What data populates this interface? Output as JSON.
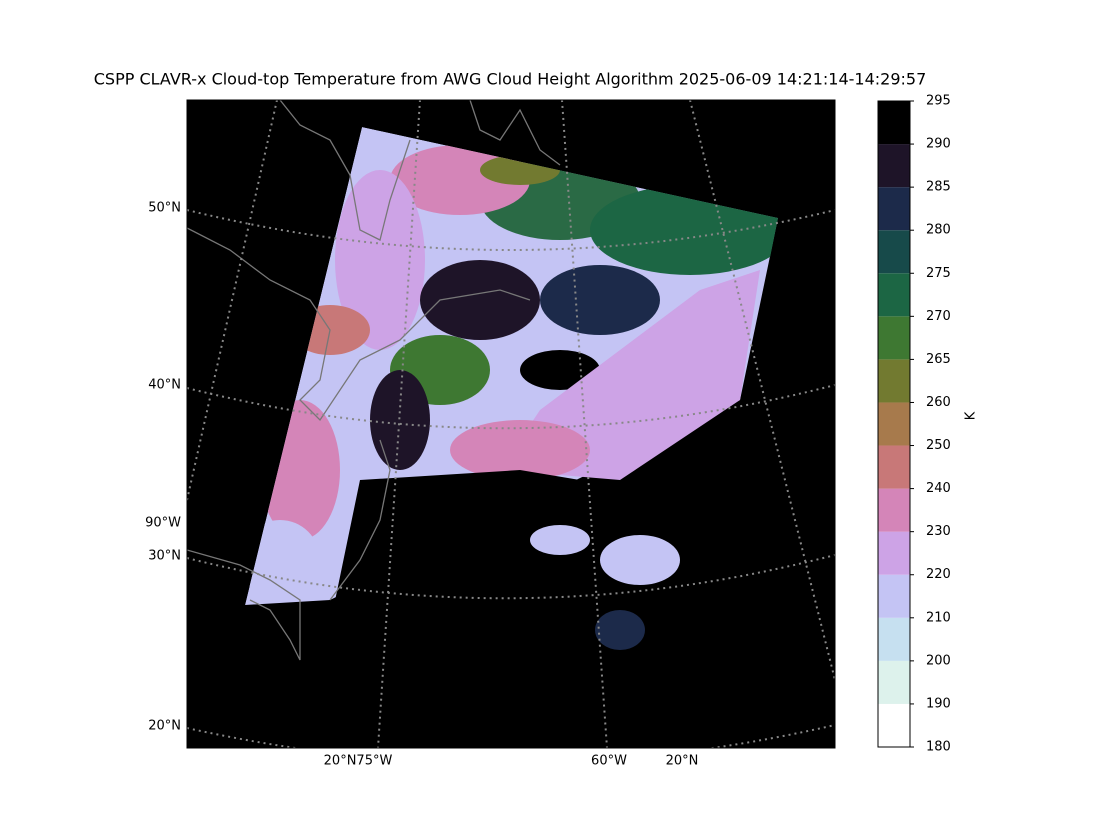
{
  "title": "CSPP CLAVR-x Cloud-top Temperature from AWG Cloud Height Algorithm 2025-06-09 14:21:14-14:29:57",
  "map": {
    "labels": [
      "50°N",
      "40°N",
      "90°W",
      "30°N",
      "20°N",
      "20°N75°W",
      "60°W",
      "20°N"
    ]
  },
  "colorbar": {
    "label": "K",
    "ticks": [
      180,
      190,
      200,
      210,
      220,
      230,
      240,
      250,
      260,
      265,
      270,
      275,
      280,
      285,
      290,
      295
    ],
    "colors": [
      "#ffffff",
      "#ddf2ec",
      "#c6e0f0",
      "#c4c4f4",
      "#cda3e6",
      "#d485b8",
      "#c87878",
      "#a77a4c",
      "#727a30",
      "#3e7832",
      "#1c6644",
      "#174a4a",
      "#1c2a4a",
      "#1e1428",
      "#000000"
    ]
  }
}
